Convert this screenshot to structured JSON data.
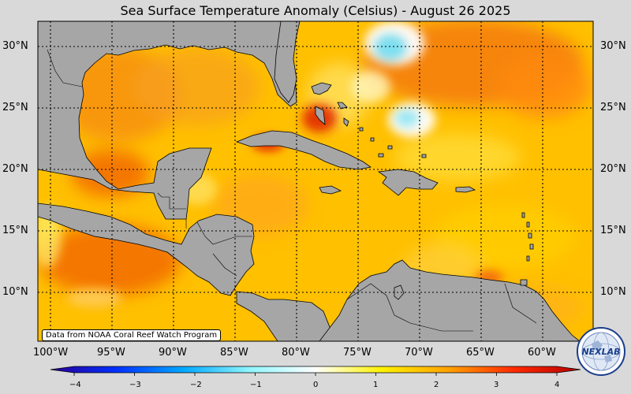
{
  "title": "Sea Surface Temperature Anomaly (Celsius) - August 26 2025",
  "latitude_labels": [
    "30°N",
    "25°N",
    "20°N",
    "15°N",
    "10°N"
  ],
  "longitude_labels": [
    "100°W",
    "95°W",
    "90°W",
    "85°W",
    "80°W",
    "75°W",
    "70°W",
    "65°W",
    "60°W"
  ],
  "colorbar": {
    "ticks": [
      "−4",
      "−3",
      "−2",
      "−1",
      "0",
      "1",
      "2",
      "3",
      "4"
    ],
    "range": [
      -4,
      4
    ],
    "colors": [
      "#2a0096",
      "#0030ff",
      "#00a8ff",
      "#8ff6ff",
      "#ffffff",
      "#fff200",
      "#ffa200",
      "#ff2a00",
      "#b40000"
    ]
  },
  "credit": "Data from NOAA Coral Reef Watch Program",
  "logo": {
    "text": "NEXLAB",
    "icon": "nexlab-globe-logo"
  },
  "colors": {
    "land": "#a6a6a6",
    "ocean_warm": "#ffb400",
    "ocean_hot": "#f26400",
    "ocean_cool": "#6fdcf0",
    "page_background": "#d9d9d9"
  }
}
